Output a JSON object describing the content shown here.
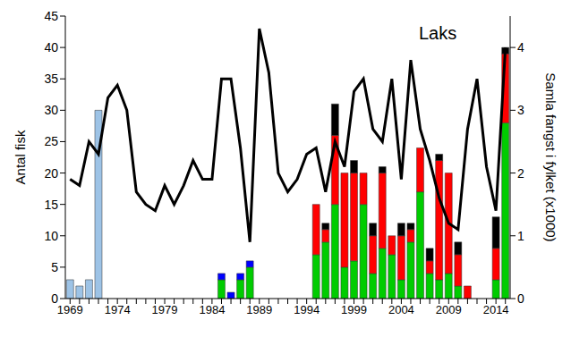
{
  "chart_data": {
    "type": "bar",
    "title": "Laks",
    "stacked": true,
    "x_label": null,
    "y_label": "Antal fisk",
    "y2_label": "Samla fangst i fylket (x1000)",
    "categories": [
      1969,
      null,
      null,
      null,
      null,
      1974,
      null,
      null,
      null,
      null,
      1979,
      null,
      null,
      null,
      null,
      1984,
      null,
      null,
      null,
      null,
      1989,
      null,
      null,
      null,
      null,
      1994,
      null,
      null,
      null,
      null,
      1999,
      null,
      null,
      null,
      null,
      2004,
      null,
      null,
      null,
      null,
      2009,
      null,
      null,
      null,
      null,
      2014,
      null
    ],
    "ylim": [
      0,
      45
    ],
    "yticks": [
      0,
      5,
      10,
      15,
      20,
      25,
      30,
      35,
      40,
      45
    ],
    "y2lim": [
      0,
      4.5
    ],
    "y2ticks": [
      0,
      1,
      2,
      3,
      4
    ],
    "series": [
      {
        "color": "#00cc00",
        "values": [
          null,
          null,
          null,
          null,
          null,
          null,
          null,
          null,
          null,
          null,
          null,
          null,
          null,
          null,
          null,
          null,
          3,
          null,
          3,
          5,
          null,
          null,
          null,
          null,
          null,
          null,
          7,
          9,
          15,
          5,
          6,
          15,
          4,
          8,
          7,
          3,
          9,
          17,
          4,
          3,
          4,
          2,
          null,
          null,
          null,
          3,
          28
        ]
      },
      {
        "color": "#0000ff",
        "values": [
          null,
          null,
          null,
          null,
          null,
          null,
          null,
          null,
          null,
          null,
          null,
          null,
          null,
          null,
          null,
          null,
          1,
          1,
          1,
          1,
          null,
          null,
          null,
          null,
          null,
          null,
          null,
          null,
          null,
          null,
          null,
          null,
          null,
          null,
          null,
          null,
          null,
          null,
          null,
          null,
          null,
          null,
          null,
          null,
          null,
          null,
          null
        ]
      },
      {
        "color": "#ff0000",
        "values": [
          null,
          null,
          null,
          null,
          null,
          null,
          null,
          null,
          null,
          null,
          null,
          null,
          null,
          null,
          null,
          null,
          null,
          null,
          null,
          null,
          null,
          null,
          null,
          null,
          null,
          null,
          8,
          2,
          11,
          15,
          14,
          5,
          6,
          12,
          3,
          7,
          2,
          7,
          2,
          19,
          16,
          5,
          2,
          null,
          null,
          5,
          11
        ]
      },
      {
        "color": "#000000",
        "values": [
          null,
          null,
          null,
          null,
          null,
          null,
          null,
          null,
          null,
          null,
          null,
          null,
          null,
          null,
          null,
          null,
          null,
          null,
          null,
          null,
          null,
          null,
          null,
          null,
          null,
          null,
          null,
          1,
          5,
          null,
          2,
          null,
          2,
          1,
          null,
          2,
          1,
          null,
          2,
          1,
          null,
          2,
          null,
          null,
          null,
          5,
          1
        ]
      },
      {
        "color": "#9dc3e6",
        "values": [
          3,
          2,
          3,
          30,
          null,
          null,
          null,
          null,
          null,
          null,
          null,
          null,
          null,
          null,
          null,
          null,
          null,
          null,
          null,
          null,
          null,
          null,
          null,
          null,
          null,
          null,
          null,
          null,
          null,
          null,
          null,
          null,
          null,
          null,
          null,
          null,
          null,
          null,
          null,
          null,
          null,
          null,
          null,
          null,
          null,
          null,
          null
        ]
      },
      {
        "type": "line",
        "axis": "y2",
        "color": "#000000",
        "values": [
          1.9,
          1.8,
          2.5,
          2.3,
          3.2,
          3.4,
          3.0,
          1.7,
          1.5,
          1.4,
          1.8,
          1.5,
          1.8,
          2.2,
          1.9,
          1.9,
          3.5,
          3.5,
          2.4,
          0.9,
          4.3,
          3.6,
          2.0,
          1.7,
          1.9,
          2.3,
          2.4,
          1.7,
          2.5,
          2.1,
          3.3,
          3.5,
          2.7,
          2.5,
          3.5,
          1.9,
          3.8,
          2.7,
          2.2,
          1.6,
          1.2,
          1.1,
          2.7,
          3.5,
          2.1,
          1.4,
          4.0
        ]
      }
    ]
  }
}
